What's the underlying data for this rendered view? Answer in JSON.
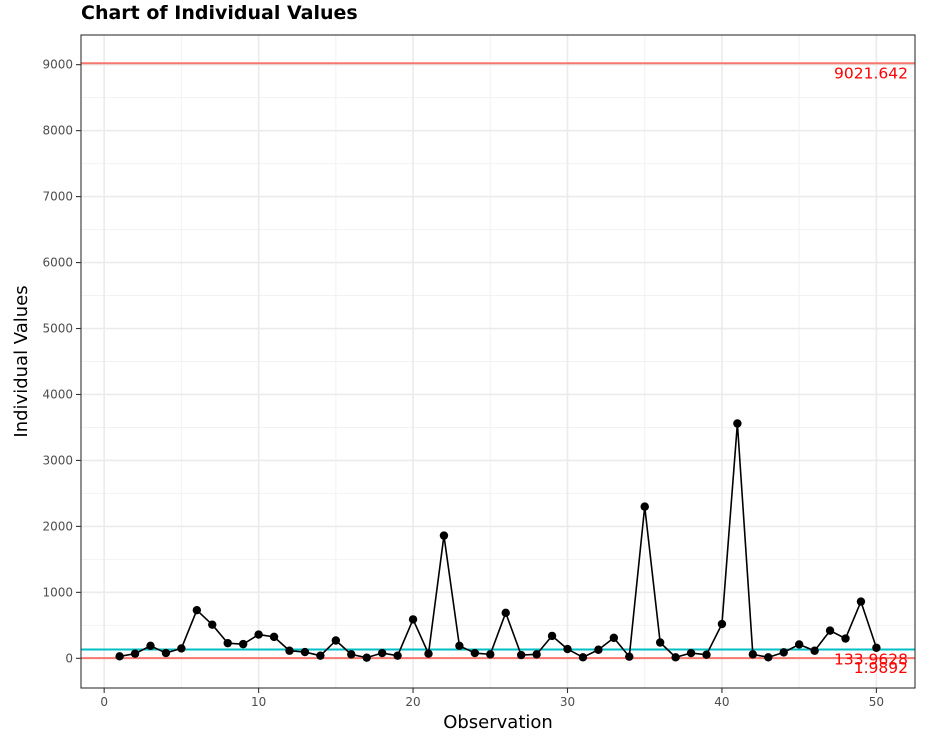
{
  "chart_data": {
    "type": "line",
    "title": "Chart of Individual Values",
    "xlabel": "Observation",
    "ylabel": "Individual Values",
    "xlim": [
      -1.5,
      52.5
    ],
    "ylim": [
      -450,
      9450
    ],
    "x_ticks": [
      0,
      10,
      20,
      30,
      40,
      50
    ],
    "y_ticks": [
      0,
      1000,
      2000,
      3000,
      4000,
      5000,
      6000,
      7000,
      8000,
      9000
    ],
    "grid": true,
    "legend": "none",
    "series": [
      {
        "x": [
          1,
          2,
          3,
          4,
          5,
          6,
          7,
          8,
          9,
          10,
          11,
          12,
          13,
          14,
          15,
          16,
          17,
          18,
          19,
          20,
          21,
          22,
          23,
          24,
          25,
          26,
          27,
          28,
          29,
          30,
          31,
          32,
          33,
          34,
          35,
          36,
          37,
          38,
          39,
          40,
          41,
          42,
          43,
          44,
          45,
          46,
          47,
          48,
          49,
          50
        ],
        "values": [
          30,
          70,
          190,
          80,
          150,
          730,
          510,
          230,
          215,
          360,
          325,
          115,
          95,
          40,
          270,
          60,
          10,
          80,
          40,
          590,
          70,
          1860,
          190,
          80,
          60,
          690,
          50,
          60,
          340,
          140,
          15,
          130,
          310,
          25,
          2300,
          240,
          15,
          80,
          55,
          520,
          3560,
          60,
          15,
          90,
          210,
          115,
          420,
          300,
          860,
          160
        ]
      }
    ],
    "reference_lines": [
      {
        "value": 9021.642,
        "label": "9021.642",
        "color": "#f8766d"
      },
      {
        "value": 133.9628,
        "label": "133.9628",
        "color": "#00bfc4"
      },
      {
        "value": 1.9892,
        "label": "1.9892",
        "color": "#f8766d"
      }
    ],
    "colors": {
      "series": "#000000",
      "limit_line": "#f8766d",
      "center_line": "#00bfc4",
      "limit_text": "#ff0000"
    }
  }
}
